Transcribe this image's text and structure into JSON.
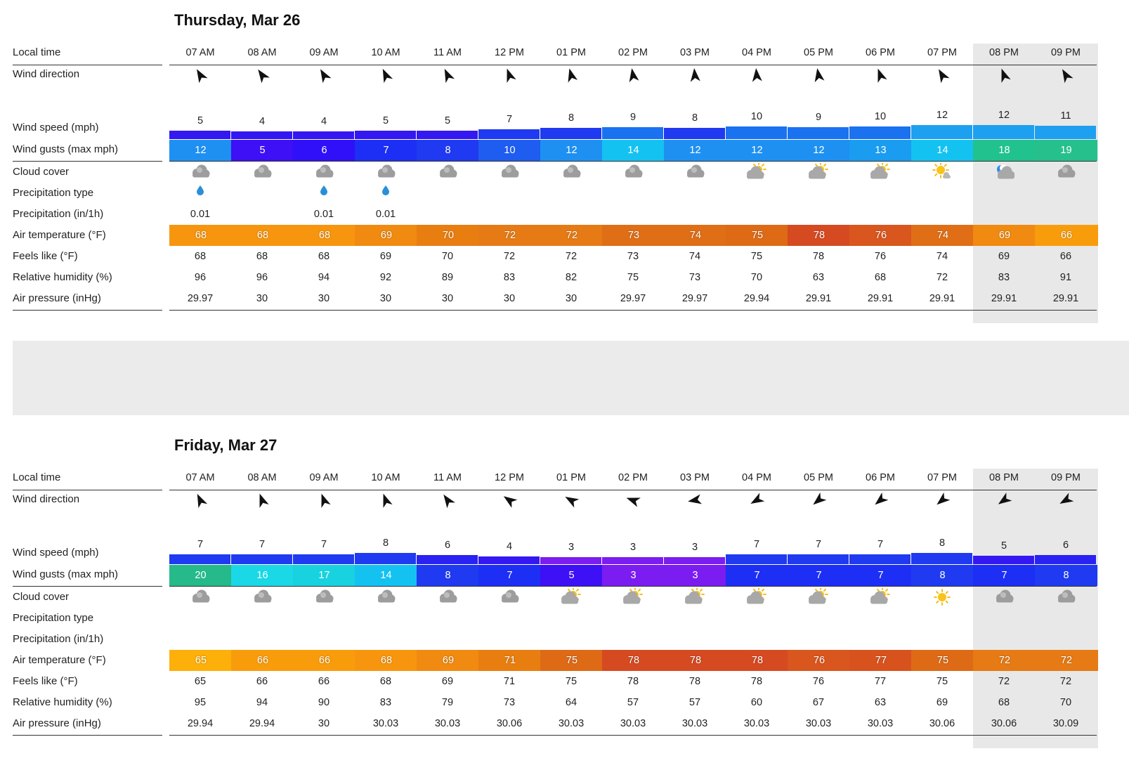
{
  "days": [
    {
      "title": "Thursday, Mar 26",
      "labels": {
        "local_time": "Local time",
        "wind_direction": "Wind direction",
        "wind_speed": "Wind speed (mph)",
        "wind_gusts": "Wind gusts (max mph)",
        "cloud_cover": "Cloud cover",
        "precip_type": "Precipitation type",
        "precip": "Precipitation (in/1h)",
        "air_temp": "Air temperature (°F)",
        "feels_like": "Feels like (°F)",
        "humidity": "Relative humidity (%)",
        "pressure": "Air pressure (inHg)"
      },
      "hours": [
        "07 AM",
        "08 AM",
        "09 AM",
        "10 AM",
        "11 AM",
        "12 PM",
        "01 PM",
        "02 PM",
        "03 PM",
        "04 PM",
        "05 PM",
        "06 PM",
        "07 PM",
        "08 PM",
        "09 PM"
      ],
      "wind_dir_deg": [
        330,
        325,
        330,
        335,
        335,
        340,
        345,
        350,
        355,
        355,
        350,
        340,
        330,
        340,
        330
      ],
      "wind_speed": [
        "5",
        "4",
        "4",
        "5",
        "5",
        "7",
        "8",
        "9",
        "8",
        "10",
        "9",
        "10",
        "12",
        "12",
        "11"
      ],
      "wind_gusts": [
        "12",
        "5",
        "6",
        "7",
        "8",
        "10",
        "12",
        "14",
        "12",
        "12",
        "12",
        "13",
        "14",
        "18",
        "19"
      ],
      "cloud_icons": [
        "cloud-icon",
        "cloud-icon",
        "cloud-icon",
        "cloud-icon",
        "cloud-icon",
        "cloud-icon",
        "cloud-icon",
        "cloud-icon",
        "cloud-icon",
        "partly-cloudy-icon",
        "partly-cloudy-icon",
        "partly-cloudy-icon",
        "mostly-sunny-icon",
        "night-cloud-icon",
        "cloud-icon"
      ],
      "precip_type": [
        "rain-drop-icon",
        "",
        "rain-drop-icon",
        "rain-drop-icon",
        "",
        "",
        "",
        "",
        "",
        "",
        "",
        "",
        "",
        "",
        ""
      ],
      "precip": [
        "0.01",
        "",
        "0.01",
        "0.01",
        "",
        "",
        "",
        "",
        "",
        "",
        "",
        "",
        "",
        "",
        ""
      ],
      "air_temp": [
        "68",
        "68",
        "68",
        "69",
        "70",
        "72",
        "72",
        "73",
        "74",
        "75",
        "78",
        "76",
        "74",
        "69",
        "66"
      ],
      "feels_like": [
        "68",
        "68",
        "68",
        "69",
        "70",
        "72",
        "72",
        "73",
        "74",
        "75",
        "78",
        "76",
        "74",
        "69",
        "66"
      ],
      "humidity": [
        "96",
        "96",
        "94",
        "92",
        "89",
        "83",
        "82",
        "75",
        "73",
        "70",
        "63",
        "68",
        "72",
        "83",
        "91"
      ],
      "pressure": [
        "29.97",
        "30",
        "30",
        "30",
        "30",
        "30",
        "30",
        "29.97",
        "29.97",
        "29.94",
        "29.91",
        "29.91",
        "29.91",
        "29.91",
        "29.91"
      ]
    },
    {
      "title": "Friday, Mar 27",
      "labels": {
        "local_time": "Local time",
        "wind_direction": "Wind direction",
        "wind_speed": "Wind speed (mph)",
        "wind_gusts": "Wind gusts (max mph)",
        "cloud_cover": "Cloud cover",
        "precip_type": "Precipitation type",
        "precip": "Precipitation (in/1h)",
        "air_temp": "Air temperature (°F)",
        "feels_like": "Feels like (°F)",
        "humidity": "Relative humidity (%)",
        "pressure": "Air pressure (inHg)"
      },
      "hours": [
        "07 AM",
        "08 AM",
        "09 AM",
        "10 AM",
        "11 AM",
        "12 PM",
        "01 PM",
        "02 PM",
        "03 PM",
        "04 PM",
        "05 PM",
        "06 PM",
        "07 PM",
        "08 PM",
        "09 PM"
      ],
      "wind_dir_deg": [
        335,
        340,
        340,
        340,
        325,
        305,
        300,
        290,
        260,
        240,
        230,
        230,
        230,
        235,
        240
      ],
      "wind_speed": [
        "7",
        "7",
        "7",
        "8",
        "6",
        "4",
        "3",
        "3",
        "3",
        "7",
        "7",
        "7",
        "8",
        "5",
        "6"
      ],
      "wind_gusts": [
        "20",
        "16",
        "17",
        "14",
        "8",
        "7",
        "5",
        "3",
        "3",
        "7",
        "7",
        "7",
        "8",
        "7",
        "8"
      ],
      "cloud_icons": [
        "cloud-icon",
        "cloud-icon",
        "cloud-icon",
        "cloud-icon",
        "cloud-icon",
        "cloud-icon",
        "partly-cloudy-icon",
        "partly-cloudy-icon",
        "partly-cloudy-icon",
        "partly-cloudy-icon",
        "partly-cloudy-icon",
        "partly-cloudy-icon",
        "sun-icon",
        "cloud-icon",
        "cloud-icon"
      ],
      "precip_type": [
        "",
        "",
        "",
        "",
        "",
        "",
        "",
        "",
        "",
        "",
        "",
        "",
        "",
        "",
        ""
      ],
      "precip": [
        "",
        "",
        "",
        "",
        "",
        "",
        "",
        "",
        "",
        "",
        "",
        "",
        "",
        "",
        ""
      ],
      "air_temp": [
        "65",
        "66",
        "66",
        "68",
        "69",
        "71",
        "75",
        "78",
        "78",
        "78",
        "76",
        "77",
        "75",
        "72",
        "72"
      ],
      "feels_like": [
        "65",
        "66",
        "66",
        "68",
        "69",
        "71",
        "75",
        "78",
        "78",
        "78",
        "76",
        "77",
        "75",
        "72",
        "72"
      ],
      "humidity": [
        "95",
        "94",
        "90",
        "83",
        "79",
        "73",
        "64",
        "57",
        "57",
        "60",
        "67",
        "63",
        "69",
        "68",
        "70"
      ],
      "pressure": [
        "29.94",
        "29.94",
        "30",
        "30.03",
        "30.03",
        "30.06",
        "30.03",
        "30.03",
        "30.03",
        "30.03",
        "30.03",
        "30.03",
        "30.06",
        "30.06",
        "30.09"
      ]
    }
  ],
  "colors": {
    "gust_scale": {
      "3": "#7b1cf0",
      "5": "#3d10f5",
      "6": "#3010f8",
      "7": "#1d2ff5",
      "8": "#1f3af0",
      "10": "#1f5cf0",
      "12": "#1e90f2",
      "13": "#1a9cf0",
      "14": "#14c2f2",
      "16": "#1ad8e6",
      "17": "#18d2e0",
      "18": "#21c28e",
      "19": "#26c08c",
      "20": "#26b98a"
    },
    "temp_scale": {
      "65": "#fdb00a",
      "66": "#f99c0c",
      "68": "#f7960e",
      "69": "#f18a10",
      "70": "#e97e10",
      "71": "#e97e10",
      "72": "#e67a14",
      "73": "#e06e16",
      "74": "#e06e16",
      "75": "#de6a16",
      "76": "#d9561e",
      "77": "#d8521e",
      "78": "#d64a22"
    }
  }
}
